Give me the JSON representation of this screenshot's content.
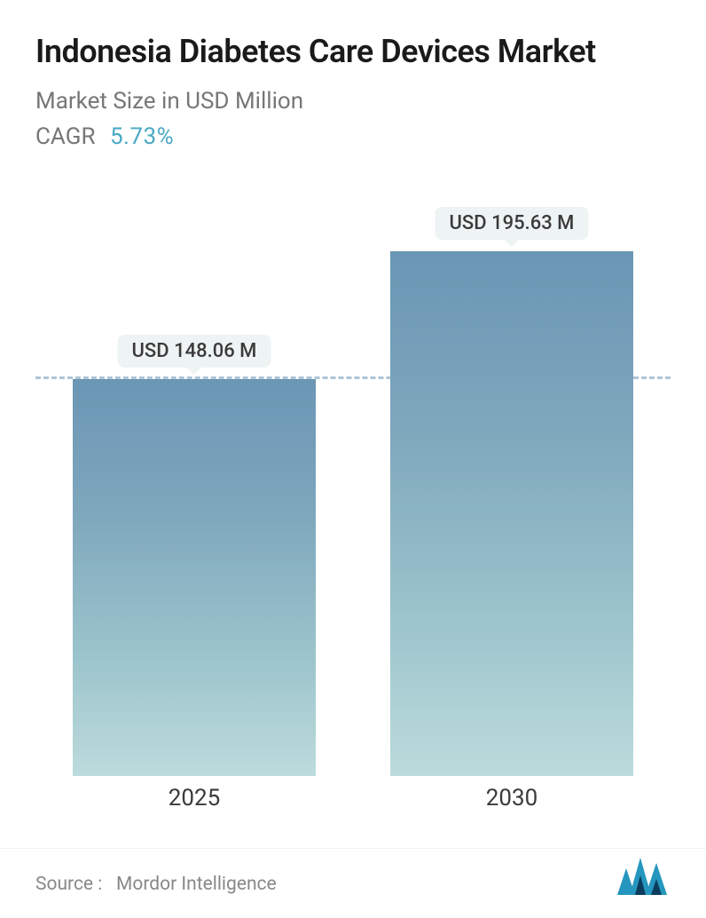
{
  "title": "Indonesia Diabetes Care Devices Market",
  "subtitle": "Market Size in USD Million",
  "cagr": {
    "label": "CAGR",
    "value": "5.73%",
    "value_color": "#4aa8c4"
  },
  "chart": {
    "type": "bar",
    "categories": [
      "2025",
      "2030"
    ],
    "values": [
      148.06,
      195.63
    ],
    "value_labels": [
      "USD 148.06 M",
      "USD 195.63 M"
    ],
    "y_max": 200,
    "reference_line_value": 148.06,
    "bar_gradient_top": "#6b96b5",
    "bar_gradient_bottom": "#bcdbdc",
    "reference_line_color": "#6b96b5",
    "badge_bg": "#eef3f4",
    "badge_text_color": "#3a3a3a",
    "xlabel_fontsize": 26,
    "badge_fontsize": 22,
    "bar_width_ratio": 0.83,
    "background_color": "#ffffff"
  },
  "footer": {
    "source_label": "Source :",
    "source_value": "Mordor Intelligence",
    "logo_colors": {
      "primary": "#2596be",
      "dark": "#0b3c5d"
    }
  },
  "typography": {
    "title_fontsize": 36,
    "title_weight": 600,
    "title_color": "#1a1a1a",
    "subtitle_fontsize": 26,
    "subtitle_color": "#777777",
    "source_fontsize": 21,
    "source_color": "#888888"
  }
}
